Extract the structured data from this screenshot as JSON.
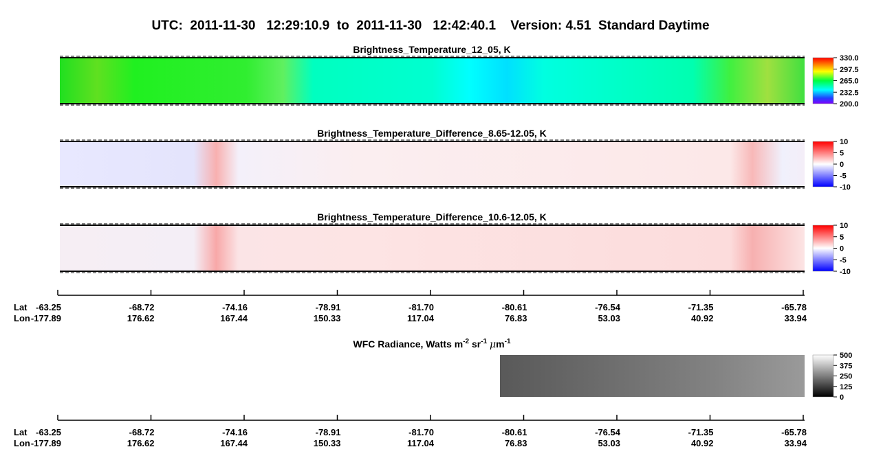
{
  "title": "UTC:  2011-11-30   12:29:10.9  to  2011-11-30   12:42:40.1    Version: 4.51  Standard Daytime",
  "chart_data": [
    {
      "type": "heatmap",
      "title": "Brightness_Temperature_12_05, K",
      "colorbar": {
        "lim": [
          200,
          330
        ],
        "ticks": [
          {
            "value": 330,
            "label": "330.0"
          },
          {
            "value": 297.5,
            "label": "297.5"
          },
          {
            "value": 265,
            "label": "265.0"
          },
          {
            "value": 232.5,
            "label": "232.5"
          },
          {
            "value": 200,
            "label": "200.0"
          }
        ]
      }
    },
    {
      "type": "heatmap",
      "title": "Brightness_Temperature_Difference_8.65-12.05, K",
      "colorbar": {
        "lim": [
          -10,
          10
        ],
        "ticks": [
          10,
          5,
          0,
          -5,
          -10
        ]
      }
    },
    {
      "type": "heatmap",
      "title": "Brightness_Temperature_Difference_10.6-12.05, K",
      "colorbar": {
        "lim": [
          -10,
          10
        ],
        "ticks": [
          10,
          5,
          0,
          -5,
          -10
        ]
      }
    },
    {
      "type": "heatmap",
      "title_parts": [
        "WFC Radiance, Watts m",
        "-2",
        " sr",
        "-1",
        " ",
        "μ",
        "m",
        "-1"
      ],
      "colorbar": {
        "lim": [
          0,
          500
        ],
        "ticks": [
          500,
          375,
          250,
          125,
          0
        ]
      }
    }
  ],
  "axes": [
    {
      "lat_label": "Lat",
      "lon_label": "Lon",
      "lat": [
        "-63.25",
        "-68.72",
        "-74.16",
        "-78.91",
        "-81.70",
        "-80.61",
        "-76.54",
        "-71.35",
        "-65.78"
      ],
      "lon": [
        "-177.89",
        "176.62",
        "167.44",
        "150.33",
        "117.04",
        "76.83",
        "53.03",
        "40.92",
        "33.94"
      ]
    },
    {
      "lat_label": "Lat",
      "lon_label": "Lon",
      "lat": [
        "-63.25",
        "-68.72",
        "-74.16",
        "-78.91",
        "-81.70",
        "-80.61",
        "-76.54",
        "-71.35",
        "-65.78"
      ],
      "lon": [
        "-177.89",
        "176.62",
        "167.44",
        "150.33",
        "117.04",
        "76.83",
        "53.03",
        "40.92",
        "33.94"
      ]
    }
  ]
}
